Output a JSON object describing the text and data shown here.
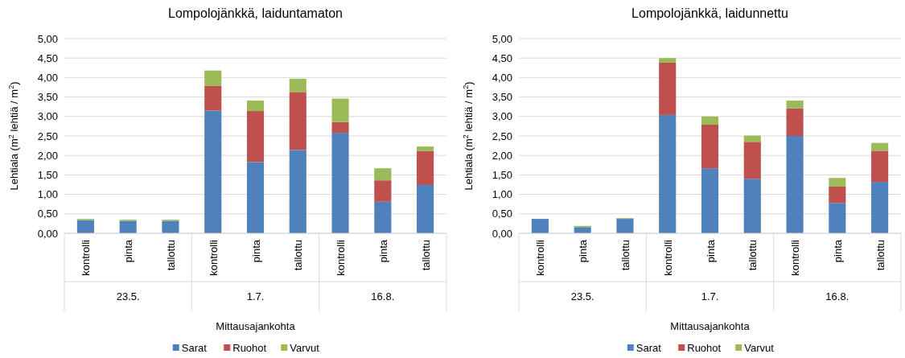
{
  "chart_data": [
    {
      "type": "bar",
      "stacked": true,
      "title": "Lompolojänkkä, laiduntamaton",
      "xlabel": "Mittausajankohta",
      "ylabel": "Lehtiala (m$^{2}$ lehtiä / m$^{2}$)",
      "categories": [
        "kontrolli",
        "pinta",
        "tallottu",
        "kontrolli",
        "pinta",
        "tallottu",
        "kontrolli",
        "pinta",
        "tallottu"
      ],
      "annotations": [
        "23.5.",
        "1.7.",
        "16.8."
      ],
      "series": [
        {
          "name": "Sarat",
          "color": "#4f81bd",
          "values": [
            0.34,
            0.32,
            0.32,
            3.15,
            1.83,
            2.14,
            2.58,
            0.81,
            1.24
          ]
        },
        {
          "name": "Ruohot",
          "color": "#c0504d",
          "values": [
            0,
            0,
            0,
            0.64,
            1.31,
            1.49,
            0.28,
            0.55,
            0.87
          ]
        },
        {
          "name": "Varvut",
          "color": "#9bbb59",
          "values": [
            0.03,
            0.03,
            0.03,
            0.39,
            0.27,
            0.34,
            0.6,
            0.31,
            0.12
          ]
        }
      ],
      "ylim": [
        0,
        5
      ],
      "yticks": [
        {
          "value": 0,
          "label": "0,00"
        },
        {
          "value": 0.5,
          "label": "0,50"
        },
        {
          "value": 1,
          "label": "1,00"
        },
        {
          "value": 1.5,
          "label": "1,50"
        },
        {
          "value": 2,
          "label": "2,00"
        },
        {
          "value": 2.5,
          "label": "2,50"
        },
        {
          "value": 3,
          "label": "3,00"
        },
        {
          "value": 3.5,
          "label": "3,50"
        },
        {
          "value": 4,
          "label": "4,00"
        },
        {
          "value": 4.5,
          "label": "4,50"
        },
        {
          "value": 5,
          "label": "5,00"
        }
      ],
      "grid": "y",
      "legend": "bottom"
    },
    {
      "type": "bar",
      "stacked": true,
      "title": "Lompolojänkkä, laidunnettu",
      "xlabel": "Mittausajankohta",
      "ylabel": "Lehtiala (m$^{2}$ lehtiä / m$^{2}$)",
      "categories": [
        "kontrolli",
        "pinta",
        "tallottu",
        "kontrolli",
        "pinta",
        "tallottu",
        "kontrolli",
        "pinta",
        "tallottu"
      ],
      "annotations": [
        "23.5.",
        "1.7.",
        "16.8."
      ],
      "series": [
        {
          "name": "Sarat",
          "color": "#4f81bd",
          "values": [
            0.37,
            0.16,
            0.37,
            3.04,
            1.67,
            1.4,
            2.5,
            0.78,
            1.32
          ]
        },
        {
          "name": "Ruohot",
          "color": "#c0504d",
          "values": [
            0,
            0,
            0,
            1.34,
            1.12,
            0.95,
            0.71,
            0.42,
            0.8
          ]
        },
        {
          "name": "Varvut",
          "color": "#9bbb59",
          "values": [
            0,
            0.03,
            0.02,
            0.12,
            0.21,
            0.16,
            0.2,
            0.22,
            0.2
          ]
        }
      ],
      "ylim": [
        0,
        5
      ],
      "yticks": [
        {
          "value": 0,
          "label": "0,00"
        },
        {
          "value": 0.5,
          "label": "0,50"
        },
        {
          "value": 1,
          "label": "1,00"
        },
        {
          "value": 1.5,
          "label": "1,50"
        },
        {
          "value": 2,
          "label": "2,00"
        },
        {
          "value": 2.5,
          "label": "2,50"
        },
        {
          "value": 3,
          "label": "3,00"
        },
        {
          "value": 3.5,
          "label": "3,50"
        },
        {
          "value": 4,
          "label": "4,00"
        },
        {
          "value": 4.5,
          "label": "4,50"
        },
        {
          "value": 5,
          "label": "5,00"
        }
      ],
      "grid": "y",
      "legend": "bottom"
    }
  ]
}
